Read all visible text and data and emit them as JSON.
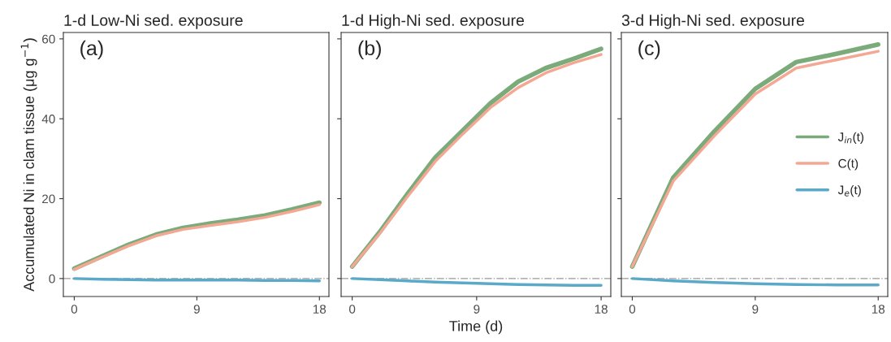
{
  "chart_data": [
    {
      "type": "line",
      "title": "1-d Low-Ni sed. exposure",
      "ylabel": "Accumulated Ni in clam tissue (μg g$^{−1}$)",
      "annotations": [
        "(a)"
      ],
      "x": [
        0,
        2,
        4,
        6,
        8,
        10,
        12,
        14,
        16,
        18
      ],
      "xlim": [
        -0.8,
        18.7
      ],
      "xticks": [
        0,
        9,
        18
      ],
      "ylim": [
        -4.5,
        61.6
      ],
      "yticks": [
        0,
        20,
        40,
        60
      ],
      "series": [
        {
          "color": "#7bab7b",
          "values": [
            2.5,
            5.5,
            8.5,
            11,
            12.7,
            13.8,
            14.7,
            15.8,
            17.3,
            19
          ]
        },
        {
          "color": "#f4a792",
          "values": [
            2.3,
            5.3,
            8.2,
            10.7,
            12.3,
            13.3,
            14.2,
            15.3,
            16.8,
            18.5
          ]
        },
        {
          "color": "#5ba9c9",
          "values": [
            0,
            -0.2,
            -0.3,
            -0.4,
            -0.4,
            -0.4,
            -0.4,
            -0.5,
            -0.5,
            -0.6
          ]
        }
      ],
      "ref_lines": [
        {
          "axis": "y",
          "value": 0,
          "color": "#999999",
          "line_style": "dashdot"
        }
      ]
    },
    {
      "type": "line",
      "title": "1-d High-Ni sed. exposure",
      "xlabel": "Time (d)",
      "annotations": [
        "(b)"
      ],
      "x": [
        0,
        2,
        4,
        6,
        8,
        10,
        12,
        14,
        16,
        18
      ],
      "xlim": [
        -0.8,
        18.7
      ],
      "xticks": [
        0,
        9,
        18
      ],
      "ylim": [
        -4.5,
        61.6
      ],
      "yticks": [
        0,
        20,
        40,
        60
      ],
      "tick_labels": "x",
      "series": [
        {
          "color": "#7bab7b",
          "values": [
            3.0,
            11.7,
            21.2,
            30.3,
            37.1,
            43.9,
            49.3,
            52.7,
            55,
            57.5
          ]
        },
        {
          "color": "#f4a792",
          "values": [
            3.0,
            11.3,
            20.5,
            29.3,
            36.2,
            42.8,
            47.8,
            51.5,
            54,
            56.1
          ]
        },
        {
          "color": "#5ba9c9",
          "values": [
            0,
            -0.3,
            -0.6,
            -0.9,
            -1.1,
            -1.3,
            -1.5,
            -1.6,
            -1.7,
            -1.7
          ]
        }
      ],
      "ref_lines": [
        {
          "axis": "y",
          "value": 0,
          "color": "#999999",
          "line_style": "dashdot"
        }
      ]
    },
    {
      "type": "line",
      "title": "3-d High-Ni sed. exposure",
      "annotations": [
        "(c)"
      ],
      "x": [
        0,
        3,
        6,
        9,
        12,
        15,
        18
      ],
      "xlim": [
        -0.8,
        18.7
      ],
      "xticks": [
        0,
        9,
        18
      ],
      "ylim": [
        -4.5,
        61.6
      ],
      "yticks": [
        0,
        20,
        40,
        60
      ],
      "tick_labels": "x",
      "legend": "right",
      "series": [
        {
          "name": "J$_{in}$(t)",
          "color": "#7bab7b",
          "values": [
            3.0,
            25.3,
            36.8,
            47.5,
            54.2,
            56.3,
            58.6
          ]
        },
        {
          "name": "C(t)",
          "color": "#f4a792",
          "values": [
            3.0,
            24.4,
            35.7,
            46.2,
            52.7,
            54.8,
            56.9
          ]
        },
        {
          "name": "J$_{e}$(t)",
          "color": "#5ba9c9",
          "values": [
            0,
            -0.6,
            -1.0,
            -1.3,
            -1.5,
            -1.6,
            -1.6
          ]
        }
      ],
      "ref_lines": [
        {
          "axis": "y",
          "value": 0,
          "color": "#999999",
          "line_style": "dashdot"
        }
      ]
    }
  ]
}
